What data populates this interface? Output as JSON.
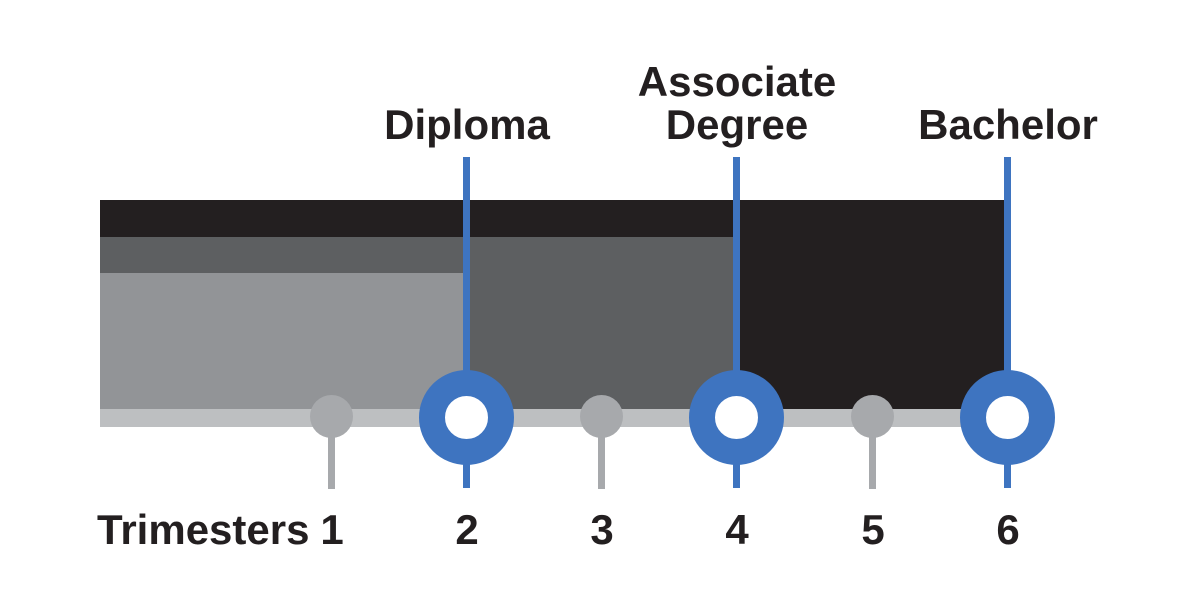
{
  "chart_data": {
    "type": "bar",
    "orientation": "horizontal",
    "title": "",
    "xlabel": "Trimesters",
    "x_ticks": [
      "1",
      "2",
      "3",
      "4",
      "5",
      "6"
    ],
    "x_range": [
      0,
      6
    ],
    "grid": false,
    "legend_position": "none",
    "series": [
      {
        "name": "Bachelor",
        "start_trimester": 0,
        "end_trimester": 6,
        "duration_trimesters": 6,
        "color": "#231f20"
      },
      {
        "name": "Associate Degree",
        "start_trimester": 0,
        "end_trimester": 4,
        "duration_trimesters": 4,
        "color": "#5d5f61"
      },
      {
        "name": "Diploma",
        "start_trimester": 0,
        "end_trimester": 2,
        "duration_trimesters": 2,
        "color": "#929497"
      }
    ],
    "milestones": [
      {
        "label": "Diploma",
        "trimester": 2
      },
      {
        "label": "Associate Degree",
        "trimester": 4
      },
      {
        "label": "Bachelor",
        "trimester": 6
      }
    ],
    "minor_markers_trimesters": [
      1,
      3,
      5
    ]
  },
  "labels": {
    "milestone_diploma": "Diploma",
    "milestone_associate_line1": "Associate",
    "milestone_associate_line2": "Degree",
    "milestone_bachelor": "Bachelor",
    "axis": "Trimesters",
    "ticks": [
      "1",
      "2",
      "3",
      "4",
      "5",
      "6"
    ]
  },
  "colors": {
    "background": "#ffffff",
    "bachelor_bar": "#231f20",
    "associate_bar": "#5d5f61",
    "diploma_bar": "#929497",
    "timeline_track": "#bdbfc1",
    "minor_marker": "#a7a9ac",
    "milestone_accent_blue": "#3e74c0",
    "milestone_hole": "#ffffff",
    "text": "#231f20"
  }
}
